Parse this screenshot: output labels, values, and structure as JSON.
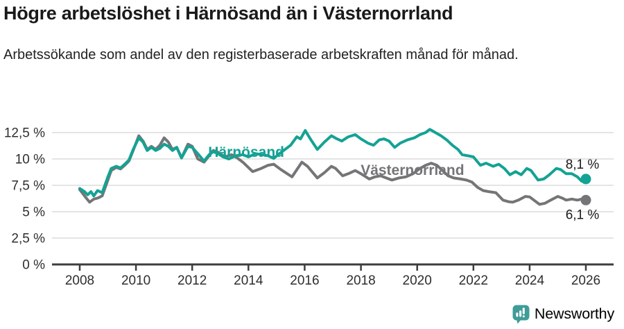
{
  "chart_data": {
    "type": "line",
    "title": "Högre arbetslöshet i Härnösand än i Västernorrland",
    "subtitle": "Arbetssökande som andel av den registerbaserade arbetskraften månad för månad.",
    "unit": "%",
    "xlabel": "",
    "ylabel": "",
    "xlim": [
      2007.3,
      2027
    ],
    "ylim": [
      0,
      13.4
    ],
    "grid": true,
    "legend_position": "inline-labels",
    "x_ticks": [
      2008,
      2010,
      2012,
      2014,
      2016,
      2018,
      2020,
      2022,
      2024,
      2026
    ],
    "y_ticks": [
      {
        "v": 0,
        "label": "0 %"
      },
      {
        "v": 2.5,
        "label": "2,5 %"
      },
      {
        "v": 5,
        "label": "5 %"
      },
      {
        "v": 7.5,
        "label": "7,5 %"
      },
      {
        "v": 10,
        "label": "10 %"
      },
      {
        "v": 12.5,
        "label": "12,5 %"
      }
    ],
    "series": [
      {
        "name": "Härnösand",
        "color": "#14a294",
        "end_label": "8,1 %",
        "end_value": 8.1,
        "label_at": [
          2012.57,
          10.2
        ],
        "end_label_dy": -15,
        "points": [
          [
            2008.0,
            7.2
          ],
          [
            2008.17,
            6.9
          ],
          [
            2008.28,
            6.6
          ],
          [
            2008.4,
            6.9
          ],
          [
            2008.5,
            6.5
          ],
          [
            2008.63,
            7.0
          ],
          [
            2008.8,
            6.8
          ],
          [
            2009.0,
            8.3
          ],
          [
            2009.12,
            9.1
          ],
          [
            2009.3,
            9.3
          ],
          [
            2009.45,
            9.15
          ],
          [
            2009.6,
            9.5
          ],
          [
            2009.75,
            9.9
          ],
          [
            2009.9,
            10.9
          ],
          [
            2010.1,
            12.0
          ],
          [
            2010.25,
            11.6
          ],
          [
            2010.4,
            10.8
          ],
          [
            2010.55,
            11.1
          ],
          [
            2010.7,
            10.8
          ],
          [
            2010.85,
            11.0
          ],
          [
            2011.0,
            11.4
          ],
          [
            2011.15,
            11.2
          ],
          [
            2011.3,
            10.8
          ],
          [
            2011.45,
            11.1
          ],
          [
            2011.62,
            10.1
          ],
          [
            2011.85,
            11.2
          ],
          [
            2012.0,
            11.1
          ],
          [
            2012.2,
            10.5
          ],
          [
            2012.42,
            9.8
          ],
          [
            2012.6,
            10.4
          ],
          [
            2012.75,
            10.7
          ],
          [
            2012.92,
            10.5
          ],
          [
            2013.1,
            10.2
          ],
          [
            2013.3,
            10.0
          ],
          [
            2013.55,
            10.3
          ],
          [
            2013.8,
            10.4
          ],
          [
            2014.0,
            10.2
          ],
          [
            2014.25,
            10.5
          ],
          [
            2014.5,
            10.4
          ],
          [
            2014.7,
            10.3
          ],
          [
            2014.9,
            10.05
          ],
          [
            2015.1,
            10.5
          ],
          [
            2015.3,
            10.9
          ],
          [
            2015.5,
            11.3
          ],
          [
            2015.72,
            12.1
          ],
          [
            2015.85,
            11.9
          ],
          [
            2016.02,
            12.7
          ],
          [
            2016.2,
            11.9
          ],
          [
            2016.45,
            10.9
          ],
          [
            2016.7,
            11.6
          ],
          [
            2016.95,
            12.2
          ],
          [
            2017.15,
            11.9
          ],
          [
            2017.32,
            11.7
          ],
          [
            2017.55,
            12.1
          ],
          [
            2017.8,
            12.3
          ],
          [
            2018.0,
            11.9
          ],
          [
            2018.25,
            11.5
          ],
          [
            2018.45,
            11.3
          ],
          [
            2018.65,
            11.8
          ],
          [
            2018.82,
            11.9
          ],
          [
            2019.0,
            11.7
          ],
          [
            2019.2,
            11.1
          ],
          [
            2019.4,
            11.5
          ],
          [
            2019.65,
            11.8
          ],
          [
            2019.9,
            12.0
          ],
          [
            2020.1,
            12.3
          ],
          [
            2020.3,
            12.5
          ],
          [
            2020.45,
            12.8
          ],
          [
            2020.65,
            12.5
          ],
          [
            2020.85,
            12.2
          ],
          [
            2021.05,
            11.8
          ],
          [
            2021.25,
            11.3
          ],
          [
            2021.45,
            10.9
          ],
          [
            2021.6,
            10.4
          ],
          [
            2021.8,
            10.3
          ],
          [
            2022.0,
            10.2
          ],
          [
            2022.25,
            9.4
          ],
          [
            2022.45,
            9.6
          ],
          [
            2022.7,
            9.3
          ],
          [
            2022.9,
            9.5
          ],
          [
            2023.1,
            9.1
          ],
          [
            2023.3,
            8.5
          ],
          [
            2023.5,
            8.8
          ],
          [
            2023.7,
            8.5
          ],
          [
            2023.9,
            9.1
          ],
          [
            2024.05,
            8.9
          ],
          [
            2024.3,
            8.0
          ],
          [
            2024.5,
            8.1
          ],
          [
            2024.7,
            8.5
          ],
          [
            2024.95,
            9.1
          ],
          [
            2025.1,
            9.0
          ],
          [
            2025.3,
            8.6
          ],
          [
            2025.5,
            8.6
          ],
          [
            2025.7,
            8.3
          ],
          [
            2025.85,
            7.9
          ],
          [
            2026.0,
            8.1
          ]
        ]
      },
      {
        "name": "Västernorrland",
        "color": "#757578",
        "end_label": "6,1 %",
        "end_value": 6.1,
        "label_at": [
          2017.99,
          8.49
        ],
        "end_label_dy": 27,
        "points": [
          [
            2008.0,
            7.1
          ],
          [
            2008.2,
            6.4
          ],
          [
            2008.35,
            5.9
          ],
          [
            2008.5,
            6.2
          ],
          [
            2008.65,
            6.3
          ],
          [
            2008.8,
            6.5
          ],
          [
            2009.0,
            8.0
          ],
          [
            2009.12,
            8.9
          ],
          [
            2009.3,
            9.2
          ],
          [
            2009.45,
            9.05
          ],
          [
            2009.6,
            9.4
          ],
          [
            2009.75,
            9.8
          ],
          [
            2009.9,
            10.8
          ],
          [
            2010.1,
            12.2
          ],
          [
            2010.25,
            11.7
          ],
          [
            2010.4,
            10.9
          ],
          [
            2010.55,
            11.2
          ],
          [
            2010.7,
            10.9
          ],
          [
            2010.85,
            11.3
          ],
          [
            2011.0,
            12.0
          ],
          [
            2011.15,
            11.6
          ],
          [
            2011.3,
            10.9
          ],
          [
            2011.45,
            11.1
          ],
          [
            2011.62,
            10.1
          ],
          [
            2011.85,
            11.4
          ],
          [
            2012.0,
            11.2
          ],
          [
            2012.2,
            10.0
          ],
          [
            2012.42,
            9.7
          ],
          [
            2012.6,
            10.3
          ],
          [
            2012.75,
            10.8
          ],
          [
            2012.95,
            10.6
          ],
          [
            2013.15,
            10.2
          ],
          [
            2013.4,
            10.4
          ],
          [
            2013.6,
            10.1
          ],
          [
            2013.8,
            9.7
          ],
          [
            2014.15,
            8.8
          ],
          [
            2014.45,
            9.1
          ],
          [
            2014.7,
            9.4
          ],
          [
            2014.9,
            9.5
          ],
          [
            2015.15,
            9.0
          ],
          [
            2015.55,
            8.3
          ],
          [
            2015.9,
            9.7
          ],
          [
            2016.1,
            9.3
          ],
          [
            2016.45,
            8.2
          ],
          [
            2016.7,
            8.7
          ],
          [
            2016.95,
            9.3
          ],
          [
            2017.1,
            9.1
          ],
          [
            2017.35,
            8.4
          ],
          [
            2017.55,
            8.6
          ],
          [
            2017.8,
            8.9
          ],
          [
            2018.0,
            8.6
          ],
          [
            2018.3,
            8.1
          ],
          [
            2018.5,
            8.3
          ],
          [
            2018.7,
            8.4
          ],
          [
            2018.9,
            8.2
          ],
          [
            2019.1,
            8.0
          ],
          [
            2019.35,
            8.2
          ],
          [
            2019.6,
            8.3
          ],
          [
            2019.85,
            8.6
          ],
          [
            2020.1,
            9.1
          ],
          [
            2020.3,
            9.4
          ],
          [
            2020.5,
            9.6
          ],
          [
            2020.7,
            9.4
          ],
          [
            2020.9,
            8.9
          ],
          [
            2021.1,
            8.4
          ],
          [
            2021.3,
            8.2
          ],
          [
            2021.55,
            8.1
          ],
          [
            2021.75,
            8.0
          ],
          [
            2021.95,
            7.8
          ],
          [
            2022.15,
            7.3
          ],
          [
            2022.35,
            7.0
          ],
          [
            2022.55,
            6.9
          ],
          [
            2022.8,
            6.8
          ],
          [
            2023.05,
            6.1
          ],
          [
            2023.25,
            5.95
          ],
          [
            2023.4,
            5.9
          ],
          [
            2023.6,
            6.1
          ],
          [
            2023.85,
            6.45
          ],
          [
            2024.0,
            6.4
          ],
          [
            2024.2,
            6.0
          ],
          [
            2024.35,
            5.7
          ],
          [
            2024.55,
            5.8
          ],
          [
            2024.75,
            6.1
          ],
          [
            2025.0,
            6.45
          ],
          [
            2025.15,
            6.3
          ],
          [
            2025.3,
            6.1
          ],
          [
            2025.5,
            6.2
          ],
          [
            2025.7,
            6.1
          ],
          [
            2025.85,
            6.2
          ],
          [
            2026.0,
            6.1
          ]
        ]
      }
    ]
  },
  "colors": {
    "accent_teal": "#14a294",
    "series_gray": "#757578",
    "grid": "#dcdcdc",
    "axis": "#3d3d3d",
    "axis_text": "#2e2e2e",
    "value_text": "#1a1a1a",
    "brand": "#3f9c98"
  },
  "footer": {
    "brand": "Newsworthy"
  }
}
